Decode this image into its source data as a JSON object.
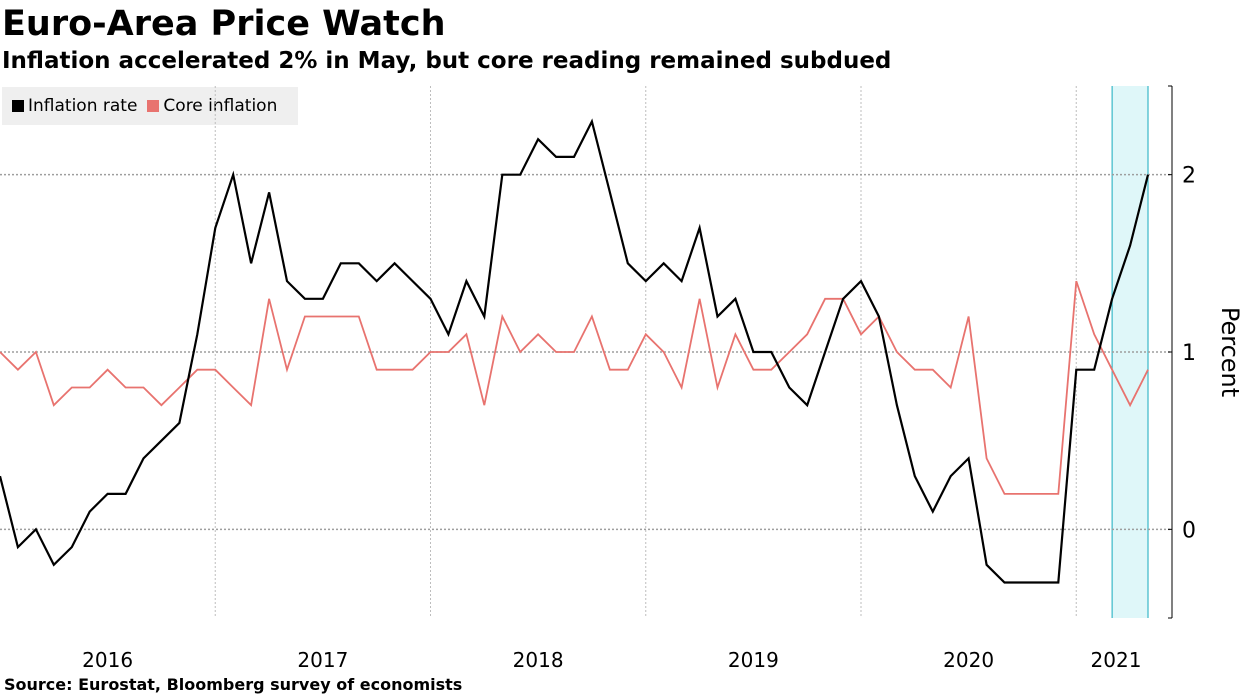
{
  "header": {
    "title": "Euro-Area Price Watch",
    "subtitle": "Inflation accelerated 2% in May, but core reading remained subdued"
  },
  "legend": {
    "items": [
      {
        "label": "Inflation rate",
        "color": "#000000"
      },
      {
        "label": "Core inflation",
        "color": "#e8736f"
      }
    ]
  },
  "footer": {
    "source": "Source: Eurostat, Bloomberg survey of economists"
  },
  "colors": {
    "highlight_fill": "#dff7f9",
    "highlight_border": "#3ab8c8",
    "grid": "#bdbdbd"
  },
  "chart_data": {
    "type": "line",
    "ylabel": "Percent",
    "ylim": [
      -0.5,
      2.5
    ],
    "y_ticks": [
      0,
      1,
      2
    ],
    "x_tick_labels": [
      "2016",
      "2017",
      "2018",
      "2019",
      "2020",
      "2021"
    ],
    "x_start": "2016-01",
    "x_end": "2021-05",
    "highlight_range": [
      "2021-03",
      "2021-05"
    ],
    "grid": true,
    "legend_position": "top-left",
    "series": [
      {
        "name": "Inflation rate",
        "color": "#000000",
        "values": [
          0.3,
          -0.1,
          0.0,
          -0.2,
          -0.1,
          0.1,
          0.2,
          0.2,
          0.4,
          0.5,
          0.6,
          1.1,
          1.7,
          2.0,
          1.5,
          1.9,
          1.4,
          1.3,
          1.3,
          1.5,
          1.5,
          1.4,
          1.5,
          1.4,
          1.3,
          1.1,
          1.4,
          1.2,
          2.0,
          2.0,
          2.2,
          2.1,
          2.1,
          2.3,
          1.9,
          1.5,
          1.4,
          1.5,
          1.4,
          1.7,
          1.2,
          1.3,
          1.0,
          1.0,
          0.8,
          0.7,
          1.0,
          1.3,
          1.4,
          1.2,
          0.7,
          0.3,
          0.1,
          0.3,
          0.4,
          -0.2,
          -0.3,
          -0.3,
          -0.3,
          -0.3,
          0.9,
          0.9,
          1.3,
          1.6,
          2.0
        ]
      },
      {
        "name": "Core inflation",
        "color": "#e8736f",
        "values": [
          1.0,
          0.9,
          1.0,
          0.7,
          0.8,
          0.8,
          0.9,
          0.8,
          0.8,
          0.7,
          0.8,
          0.9,
          0.9,
          0.8,
          0.7,
          1.3,
          0.9,
          1.2,
          1.2,
          1.2,
          1.2,
          0.9,
          0.9,
          0.9,
          1.0,
          1.0,
          1.1,
          0.7,
          1.2,
          1.0,
          1.1,
          1.0,
          1.0,
          1.2,
          0.9,
          0.9,
          1.1,
          1.0,
          0.8,
          1.3,
          0.8,
          1.1,
          0.9,
          0.9,
          1.0,
          1.1,
          1.3,
          1.3,
          1.1,
          1.2,
          1.0,
          0.9,
          0.9,
          0.8,
          1.2,
          0.4,
          0.2,
          0.2,
          0.2,
          0.2,
          1.4,
          1.1,
          0.9,
          0.7,
          0.9
        ]
      }
    ]
  }
}
